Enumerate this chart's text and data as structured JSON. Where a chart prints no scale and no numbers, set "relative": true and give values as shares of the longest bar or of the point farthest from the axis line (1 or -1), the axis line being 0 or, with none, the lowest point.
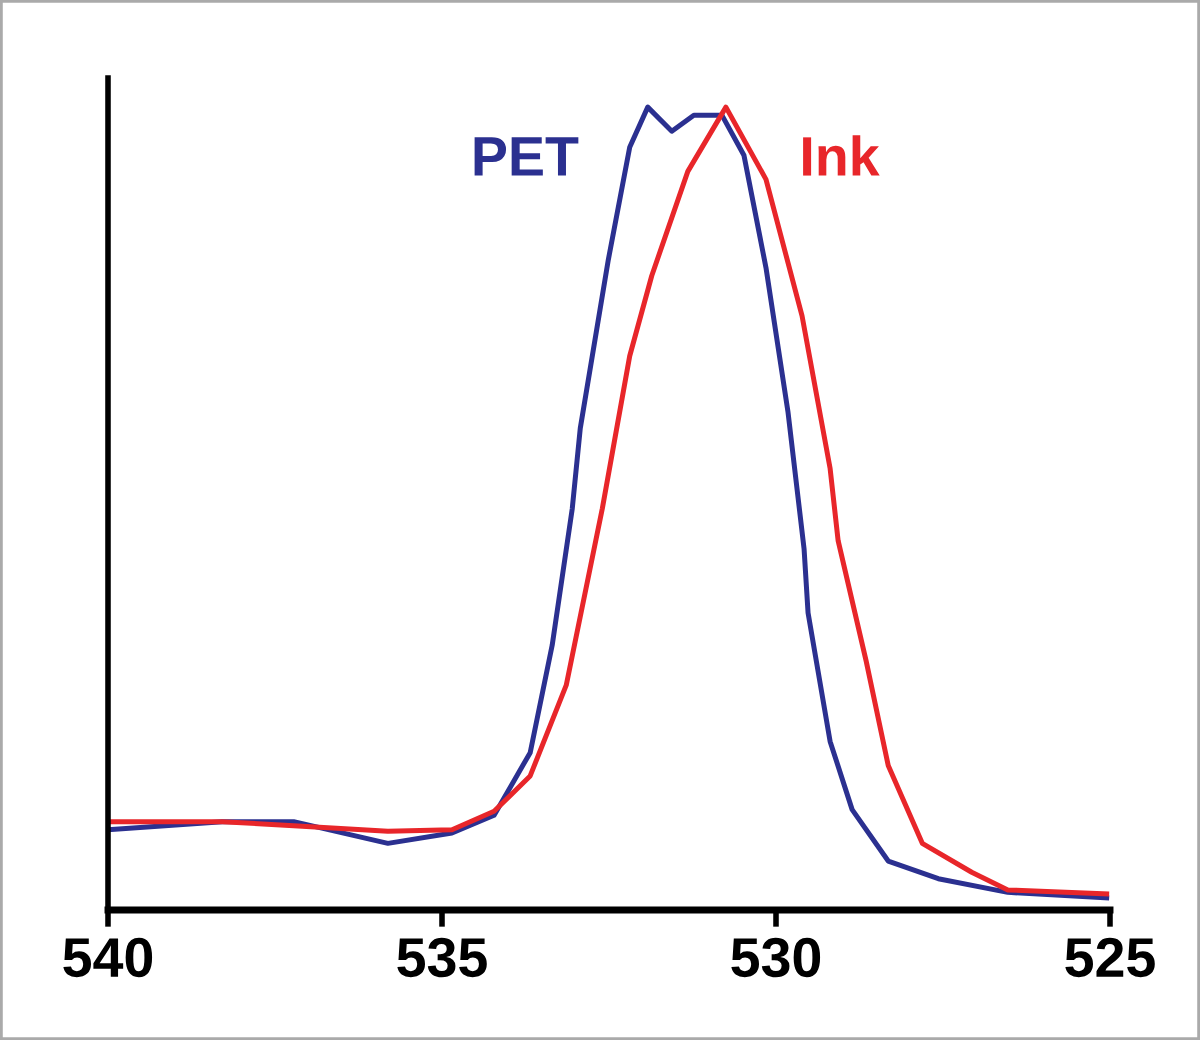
{
  "chart_data": {
    "type": "line",
    "relative": true,
    "xlim": [
      540,
      525
    ],
    "xticks": [
      540,
      535,
      530,
      525
    ],
    "tick_labels": "x",
    "grid": false,
    "legend": false,
    "marker": "none",
    "line_style": "solid",
    "series": [
      {
        "name": "PET",
        "color": "#2b3090",
        "x": [
          540,
          538.29,
          537.22,
          535.81,
          534.85,
          534.22,
          533.68,
          533.35,
          533.05,
          532.93,
          532.51,
          532.19,
          531.92,
          531.56,
          531.23,
          530.81,
          530.48,
          530.15,
          529.82,
          529.58,
          529.52,
          529.19,
          528.86,
          528.32,
          527.57,
          526.53,
          525.05
        ],
        "values": [
          0.1,
          0.11,
          0.11,
          0.083,
          0.096,
          0.118,
          0.196,
          0.33,
          0.5,
          0.6,
          0.81,
          0.95,
          1.0,
          0.97,
          0.99,
          0.99,
          0.94,
          0.8,
          0.62,
          0.45,
          0.37,
          0.21,
          0.125,
          0.061,
          0.039,
          0.022,
          0.015
        ]
      },
      {
        "name": "Ink",
        "color": "#e8262a",
        "x": [
          540,
          538.29,
          537.22,
          535.81,
          534.85,
          534.22,
          533.68,
          533.14,
          532.6,
          532.19,
          531.86,
          531.32,
          530.75,
          530.15,
          529.61,
          529.19,
          529.07,
          528.65,
          528.32,
          527.81,
          527.07,
          526.53,
          525.05
        ],
        "values": [
          0.11,
          0.11,
          0.105,
          0.098,
          0.1,
          0.123,
          0.167,
          0.28,
          0.5,
          0.69,
          0.79,
          0.92,
          1.0,
          0.91,
          0.74,
          0.55,
          0.46,
          0.31,
          0.18,
          0.083,
          0.047,
          0.025,
          0.02
        ]
      }
    ]
  }
}
